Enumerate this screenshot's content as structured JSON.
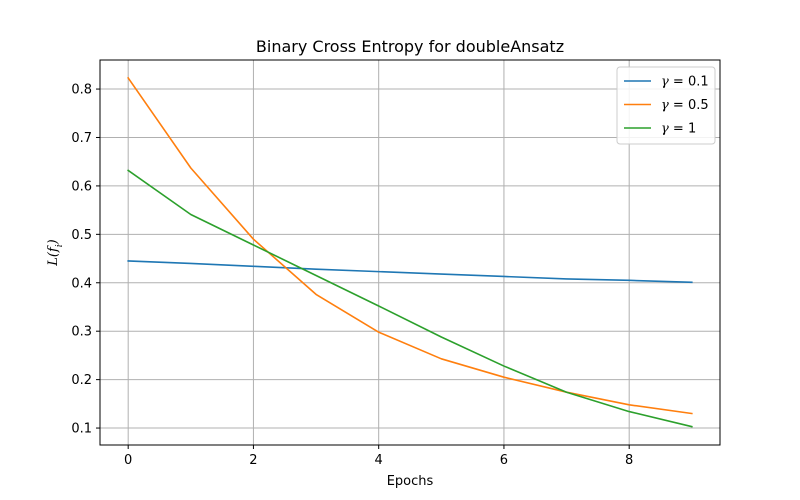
{
  "chart_data": {
    "type": "line",
    "title": "Binary Cross Entropy for doubleAnsatz",
    "xlabel": "Epochs",
    "ylabel": "L(f_i)",
    "xlim": [
      -0.45,
      9.45
    ],
    "ylim": [
      0.065,
      0.86
    ],
    "xticks": [
      0,
      2,
      4,
      6,
      8
    ],
    "yticks": [
      0.1,
      0.2,
      0.3,
      0.4,
      0.5,
      0.6,
      0.7,
      0.8
    ],
    "grid": true,
    "legend_position": "top-right",
    "x": [
      0,
      1,
      2,
      3,
      4,
      5,
      6,
      7,
      8,
      9
    ],
    "series": [
      {
        "name": "γ = 0.1",
        "color": "#1f77b4",
        "values": [
          0.445,
          0.44,
          0.434,
          0.428,
          0.423,
          0.418,
          0.413,
          0.408,
          0.405,
          0.401
        ]
      },
      {
        "name": "γ = 0.5",
        "color": "#ff7f0e",
        "values": [
          0.823,
          0.637,
          0.49,
          0.376,
          0.298,
          0.243,
          0.205,
          0.174,
          0.148,
          0.13
        ]
      },
      {
        "name": "γ = 1",
        "color": "#2ca02c",
        "values": [
          0.632,
          0.541,
          0.478,
          0.415,
          0.352,
          0.288,
          0.228,
          0.174,
          0.134,
          0.103
        ]
      }
    ]
  }
}
